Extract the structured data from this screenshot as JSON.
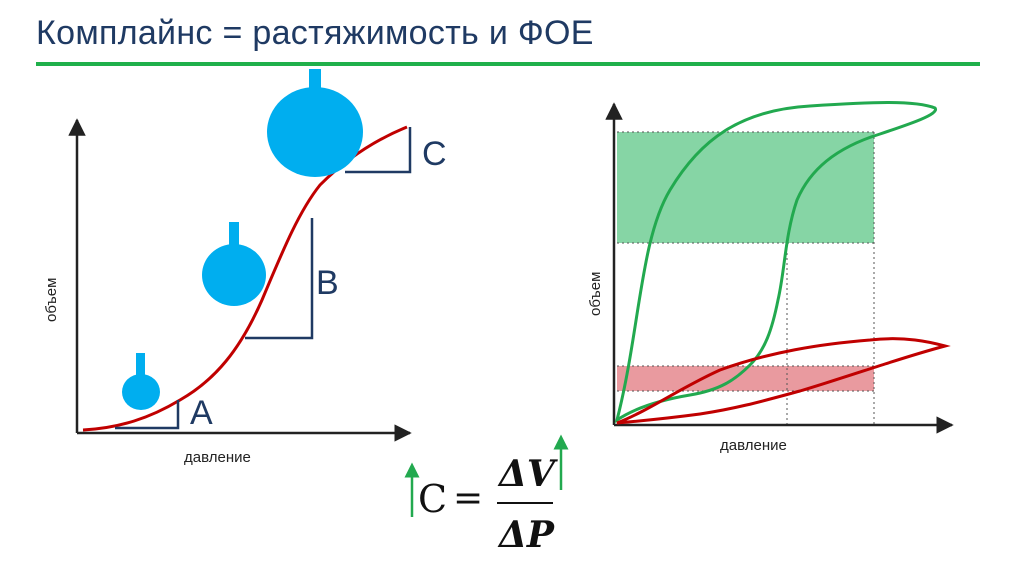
{
  "slide": {
    "title": "Комплайнс = растяжимость и ФОЕ"
  },
  "left_diagram": {
    "xlabel": "давление",
    "ylabel": "объем",
    "points": [
      "A",
      "B",
      "C"
    ]
  },
  "right_diagram": {
    "xlabel": "давление",
    "ylabel": "объем"
  },
  "formula": {
    "lhs": "C",
    "equals": "=",
    "numerator": "ΔV",
    "denominator": "ΔP"
  },
  "colors": {
    "title": "#1f3a63",
    "rule": "#20b04b",
    "curve_red": "#c00000",
    "curve_green": "#22a94f",
    "slope_lines": "#1f3a63",
    "balloon": "#00aeef",
    "green_band": "#7fd3a0",
    "red_band": "#e8959a",
    "arrow": "#22a94f"
  }
}
